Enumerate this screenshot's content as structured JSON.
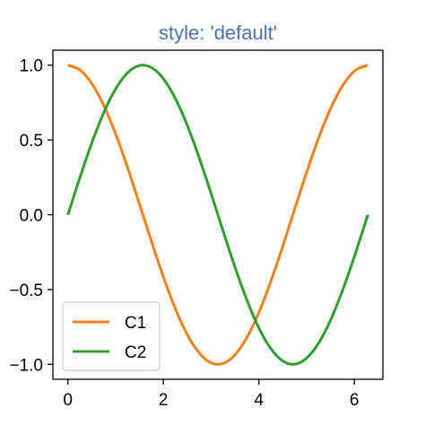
{
  "chart_data": {
    "type": "line",
    "title": "style: 'default'",
    "title_color": "#4c72b0",
    "xlabel": "",
    "ylabel": "",
    "xlim": [
      -0.314,
      6.597
    ],
    "ylim": [
      -1.1,
      1.1
    ],
    "xticks": [
      0,
      2,
      4,
      6
    ],
    "xtick_labels": [
      "0",
      "2",
      "4",
      "6"
    ],
    "yticks": [
      1.0,
      0.5,
      0.0,
      -0.5,
      -1.0
    ],
    "ytick_labels": [
      "1.0",
      "0.5",
      "0.0",
      "−0.5",
      "−1.0"
    ],
    "grid": false,
    "legend_position": "lower-left",
    "x": [
      0.0,
      0.2618,
      0.5236,
      0.7854,
      1.0472,
      1.309,
      1.5708,
      1.8326,
      2.0944,
      2.3562,
      2.618,
      2.8798,
      3.1416,
      3.4034,
      3.6652,
      3.927,
      4.1888,
      4.4506,
      4.7124,
      4.9742,
      5.236,
      5.4978,
      5.7596,
      6.0214,
      6.2832
    ],
    "series": [
      {
        "name": "C1",
        "color": "#ff7f0e",
        "values": [
          1.0,
          0.966,
          0.866,
          0.707,
          0.5,
          0.259,
          0.0,
          -0.259,
          -0.5,
          -0.707,
          -0.866,
          -0.966,
          -1.0,
          -0.966,
          -0.866,
          -0.707,
          -0.5,
          -0.259,
          0.0,
          0.259,
          0.5,
          0.707,
          0.866,
          0.966,
          1.0
        ]
      },
      {
        "name": "C2",
        "color": "#2ca02c",
        "values": [
          0.0,
          0.259,
          0.5,
          0.707,
          0.866,
          0.966,
          1.0,
          0.966,
          0.866,
          0.707,
          0.5,
          0.259,
          0.0,
          -0.259,
          -0.5,
          -0.707,
          -0.866,
          -0.966,
          -1.0,
          -0.966,
          -0.866,
          -0.707,
          -0.5,
          -0.259,
          0.0
        ]
      }
    ]
  }
}
